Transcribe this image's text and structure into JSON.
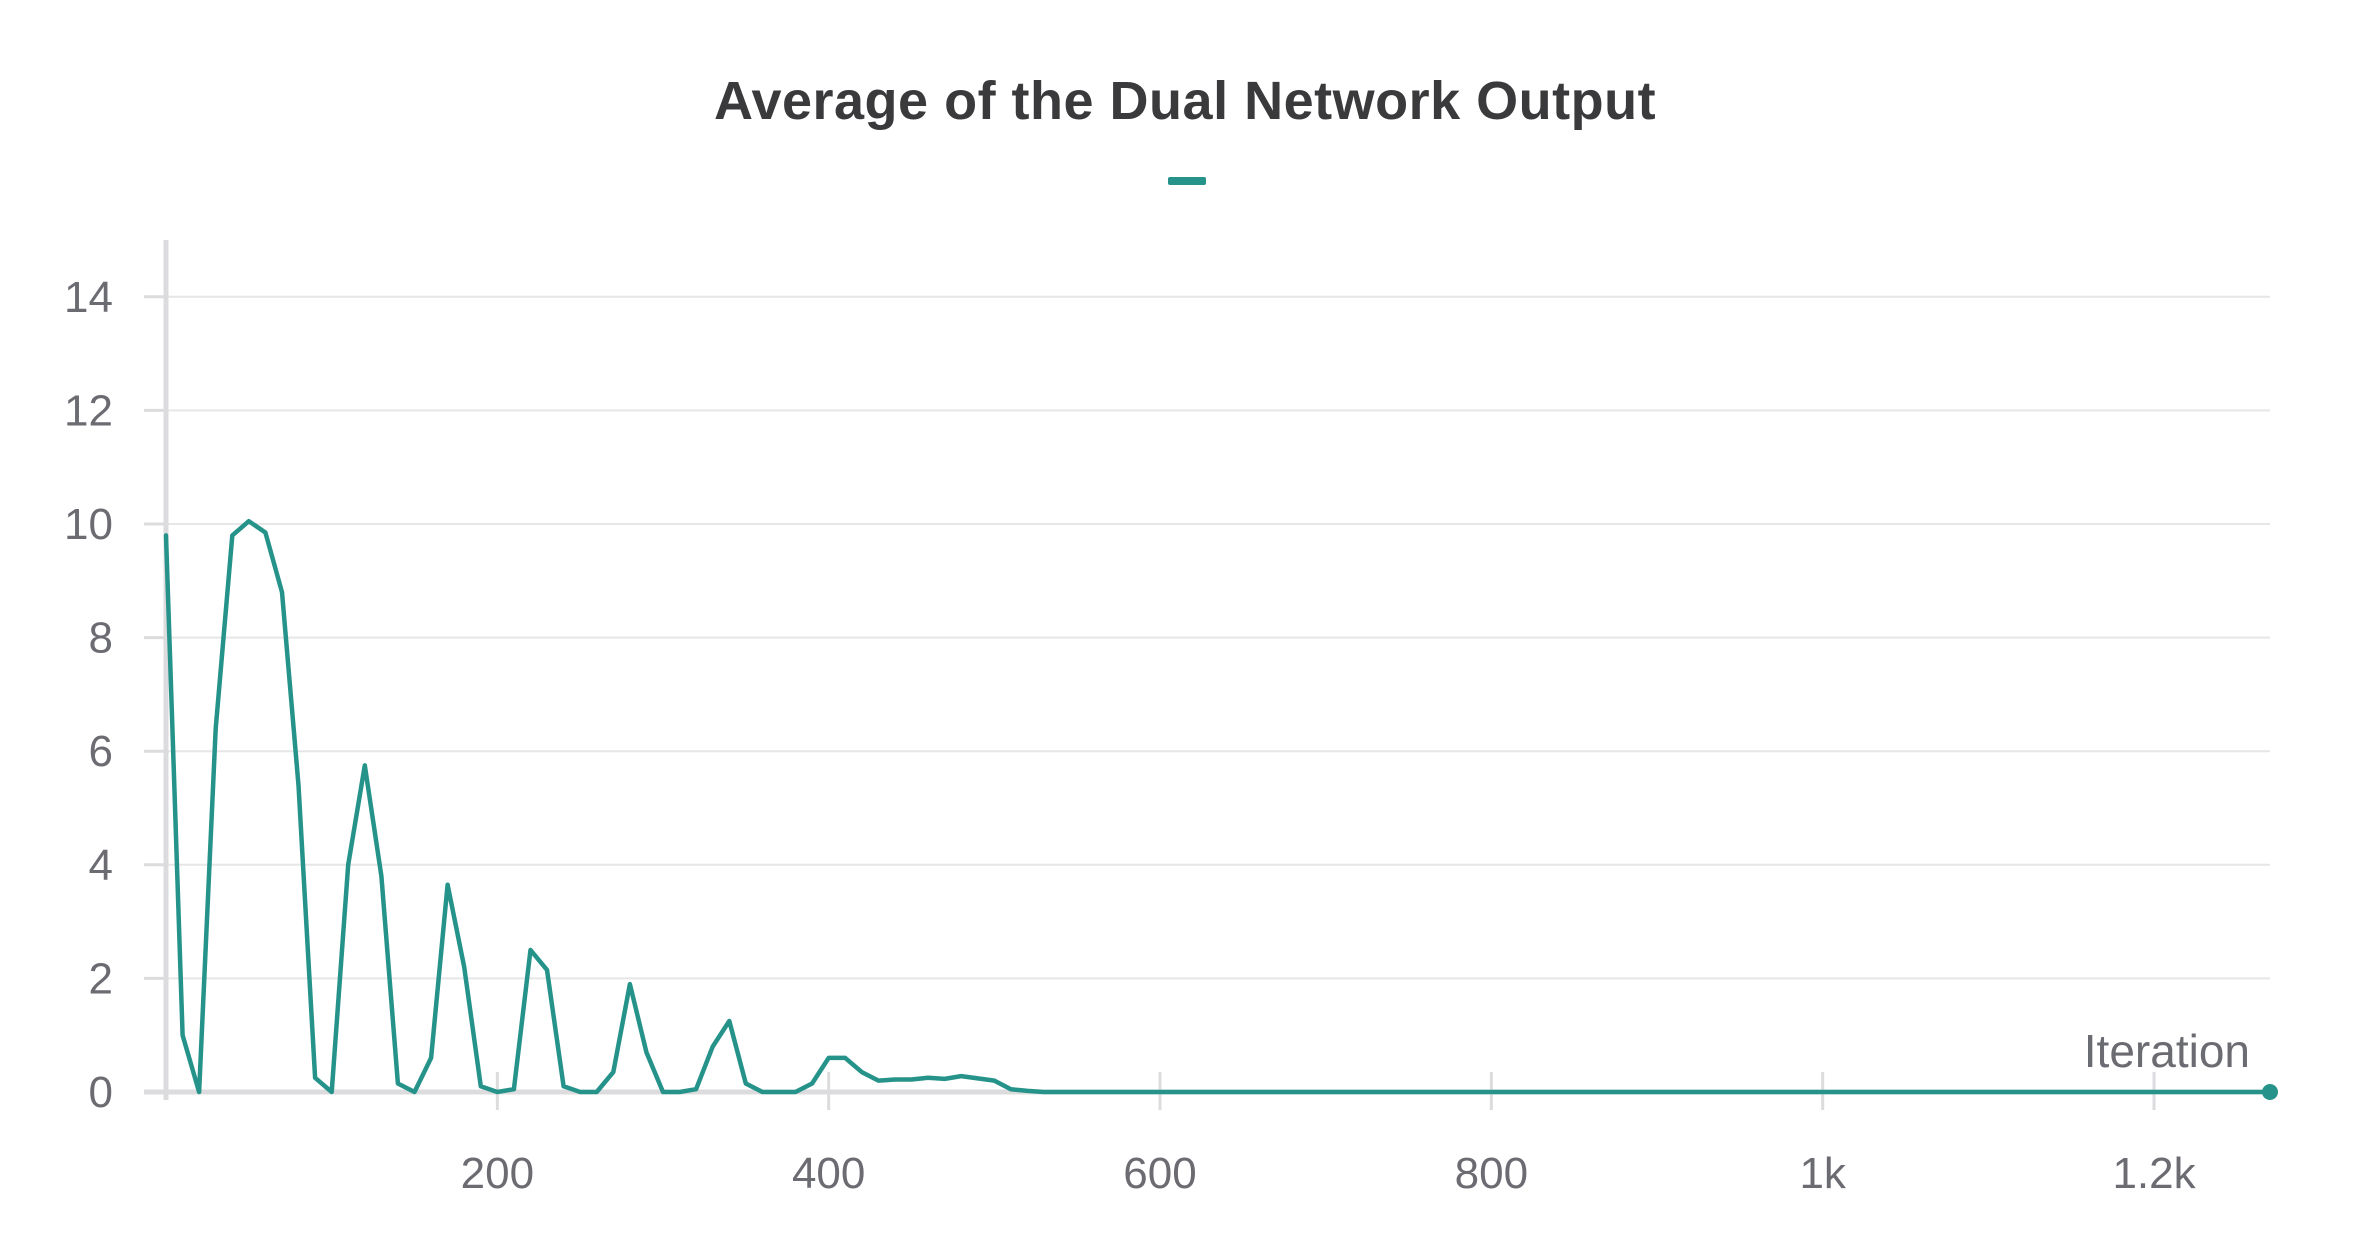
{
  "chart_data": {
    "type": "line",
    "title": "Average of the Dual Network Output",
    "xlabel": "Iteration",
    "ylabel": "",
    "xlim": [
      0,
      1270
    ],
    "ylim": [
      0,
      15
    ],
    "x_ticks": [
      200,
      400,
      600,
      800,
      1000,
      1200
    ],
    "x_tick_labels": [
      "200",
      "400",
      "600",
      "800",
      "1k",
      "1.2k"
    ],
    "y_ticks": [
      0,
      2,
      4,
      6,
      8,
      10,
      12,
      14
    ],
    "y_tick_labels": [
      "0",
      "2",
      "4",
      "6",
      "8",
      "10",
      "12",
      "14"
    ],
    "grid": true,
    "series_color": "#26938a",
    "series": [
      {
        "x": [
          0,
          10,
          20,
          30,
          40,
          50,
          60,
          70,
          80,
          90,
          100,
          110,
          120,
          130,
          140,
          150,
          160,
          170,
          180,
          190,
          200,
          210,
          220,
          230,
          240,
          250,
          260,
          270,
          280,
          290,
          300,
          310,
          320,
          330,
          340,
          350,
          360,
          370,
          380,
          390,
          400,
          410,
          420,
          430,
          440,
          450,
          460,
          470,
          480,
          490,
          500,
          510,
          520,
          530,
          540,
          550,
          560,
          570,
          580,
          590,
          600,
          700,
          800,
          900,
          1000,
          1100,
          1200,
          1270
        ],
        "y": [
          9.8,
          1.0,
          0.0,
          6.4,
          9.8,
          10.05,
          9.85,
          8.8,
          5.4,
          0.25,
          0.0,
          4.0,
          5.75,
          3.8,
          0.15,
          0.0,
          0.6,
          3.65,
          2.2,
          0.1,
          0.0,
          0.05,
          2.5,
          2.15,
          0.1,
          0.0,
          0.0,
          0.35,
          1.9,
          0.7,
          0.0,
          0.0,
          0.05,
          0.8,
          1.25,
          0.15,
          0.0,
          0.0,
          0.0,
          0.15,
          0.6,
          0.6,
          0.35,
          0.2,
          0.22,
          0.22,
          0.25,
          0.23,
          0.28,
          0.24,
          0.2,
          0.05,
          0.02,
          0.0,
          0.0,
          0.0,
          0.0,
          0.0,
          0.0,
          0.0,
          0.0,
          0.0,
          0.0,
          0.0,
          0.0,
          0.0,
          0.0,
          0.0
        ]
      }
    ]
  }
}
